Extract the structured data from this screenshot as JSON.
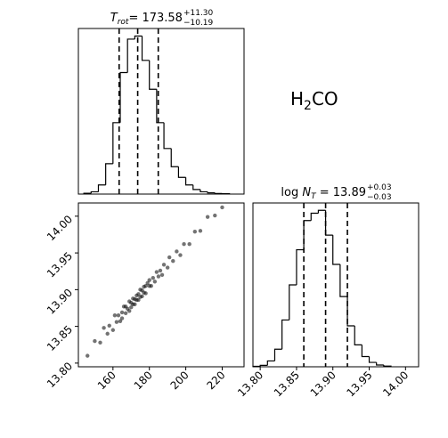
{
  "annotation": {
    "text": "H",
    "sub": "2",
    "rest": "CO"
  },
  "chart_data": [
    {
      "type": "histogram",
      "title": {
        "symbol": "T",
        "symbol_sub": "rot",
        "equals": "= 173.58",
        "upper": "+11.30",
        "lower": "−10.19"
      },
      "bins": [
        144,
        148,
        152,
        156,
        160,
        164,
        168,
        172,
        176,
        180,
        184,
        188,
        192,
        196,
        200,
        204,
        208,
        212,
        216,
        220,
        224
      ],
      "counts": [
        5,
        15,
        60,
        200,
        470,
        800,
        1020,
        1040,
        880,
        690,
        470,
        300,
        180,
        110,
        60,
        30,
        15,
        8,
        4,
        2
      ],
      "quantiles": [
        163.39,
        173.58,
        184.88
      ],
      "xlim": [
        141,
        232
      ],
      "ylim": [
        0,
        1090
      ],
      "color": "#000000"
    },
    {
      "type": "scatter",
      "x": [
        146,
        150,
        153,
        155,
        157,
        158,
        160,
        161,
        162,
        163,
        164,
        165,
        165,
        166,
        167,
        167,
        168,
        169,
        169,
        170,
        170,
        171,
        171,
        172,
        172,
        173,
        173,
        174,
        174,
        175,
        175,
        176,
        176,
        177,
        177,
        178,
        178,
        179,
        180,
        180,
        181,
        182,
        183,
        184,
        185,
        186,
        187,
        188,
        190,
        191,
        193,
        195,
        197,
        199,
        202,
        205,
        208,
        212,
        216,
        220
      ],
      "y": [
        13.81,
        13.83,
        13.828,
        13.848,
        13.84,
        13.851,
        13.845,
        13.865,
        13.856,
        13.865,
        13.857,
        13.869,
        13.861,
        13.877,
        13.868,
        13.877,
        13.874,
        13.884,
        13.871,
        13.882,
        13.876,
        13.888,
        13.88,
        13.887,
        13.88,
        13.892,
        13.886,
        13.886,
        13.894,
        13.9,
        13.89,
        13.899,
        13.891,
        13.904,
        13.896,
        13.905,
        13.895,
        13.909,
        13.905,
        13.913,
        13.905,
        13.916,
        13.911,
        13.924,
        13.918,
        13.926,
        13.92,
        13.934,
        13.93,
        13.944,
        13.939,
        13.952,
        13.947,
        13.962,
        13.962,
        13.979,
        13.98,
        13.999,
        14.001,
        14.012
      ],
      "xlim": [
        141,
        232
      ],
      "ylim": [
        13.795,
        14.018
      ],
      "xticks": [
        160,
        180,
        200,
        220
      ],
      "yticks": [
        {
          "value": 13.8,
          "label": "13.80"
        },
        {
          "value": 13.85,
          "label": "13.85"
        },
        {
          "value": 13.9,
          "label": "13.90"
        },
        {
          "value": 13.95,
          "label": "13.95"
        },
        {
          "value": 14.0,
          "label": "14.00"
        }
      ],
      "color": "#000000"
    },
    {
      "type": "histogram",
      "title": {
        "prefix": "log ",
        "symbol": "N",
        "symbol_sub": "T",
        "equals": " = 13.89",
        "upper": "+0.03",
        "lower": "−0.03"
      },
      "bins": [
        13.79,
        13.8,
        13.81,
        13.82,
        13.83,
        13.84,
        13.85,
        13.86,
        13.87,
        13.88,
        13.89,
        13.9,
        13.91,
        13.92,
        13.93,
        13.94,
        13.95,
        13.96,
        13.97,
        13.98
      ],
      "counts": [
        3,
        10,
        40,
        120,
        320,
        560,
        800,
        1000,
        1050,
        1070,
        900,
        700,
        480,
        280,
        150,
        70,
        30,
        12,
        5
      ],
      "quantiles": [
        13.86,
        13.89,
        13.92
      ],
      "xlim": [
        13.79,
        14.018
      ],
      "ylim": [
        0,
        1120
      ],
      "xticks": [
        {
          "value": 13.8,
          "label": "13.80"
        },
        {
          "value": 13.85,
          "label": "13.85"
        },
        {
          "value": 13.9,
          "label": "13.90"
        },
        {
          "value": 13.95,
          "label": "13.95"
        },
        {
          "value": 14.0,
          "label": "14.00"
        }
      ],
      "color": "#000000"
    }
  ]
}
